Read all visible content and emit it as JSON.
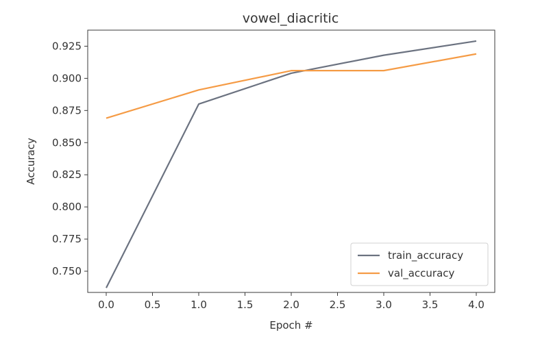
{
  "chart_data": {
    "type": "line",
    "title": "vowel_diacritic",
    "xlabel": "Epoch #",
    "ylabel": "Accuracy",
    "x": [
      0,
      1,
      2,
      3,
      4
    ],
    "xlim": [
      -0.2,
      4.2
    ],
    "ylim": [
      0.7335,
      0.9375
    ],
    "x_ticks": [
      0.0,
      0.5,
      1.0,
      1.5,
      2.0,
      2.5,
      3.0,
      3.5,
      4.0
    ],
    "x_tick_labels": [
      "0.0",
      "0.5",
      "1.0",
      "1.5",
      "2.0",
      "2.5",
      "3.0",
      "3.5",
      "4.0"
    ],
    "y_ticks": [
      0.75,
      0.775,
      0.8,
      0.825,
      0.85,
      0.875,
      0.9,
      0.925
    ],
    "y_tick_labels": [
      "0.750",
      "0.775",
      "0.800",
      "0.825",
      "0.850",
      "0.875",
      "0.900",
      "0.925"
    ],
    "grid": false,
    "legend_position": "lower-right",
    "series": [
      {
        "name": "train_accuracy",
        "color": "#6b7280",
        "values": [
          0.737,
          0.88,
          0.904,
          0.918,
          0.929
        ]
      },
      {
        "name": "val_accuracy",
        "color": "#f59b45",
        "values": [
          0.869,
          0.891,
          0.906,
          0.906,
          0.919
        ]
      }
    ]
  }
}
